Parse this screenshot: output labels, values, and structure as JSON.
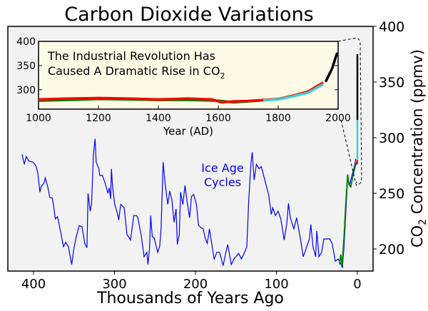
{
  "chart_data": [
    {
      "type": "line",
      "title": "Carbon Dioxide Variations",
      "xlabel": "Thousands of Years Ago",
      "ylabel": "CO2 Concentration (ppmv)",
      "ylabel_main": "CO",
      "ylabel_sub": "2",
      "ylabel_rest": " Concentration (ppmv)",
      "xlim": [
        430,
        -19
      ],
      "ylim": [
        180,
        400
      ],
      "x_reversed": true,
      "xticks": [
        400,
        300,
        200,
        100,
        0
      ],
      "yticks": [
        200,
        250,
        300,
        350,
        400
      ],
      "y_axis_side": "right",
      "grid": false,
      "background": "#f2f2f2",
      "annotation": {
        "line1": "Ice Age",
        "line2": "Cycles",
        "color": "#0000ff"
      },
      "series": [
        {
          "color": "#0000ff",
          "x": [
            414.1,
            411.4,
            409.1,
            405.7,
            400.7,
            397.3,
            394.6,
            392.2,
            390.6,
            387.2,
            385.5,
            382.2,
            379.8,
            377.1,
            375.4,
            373.1,
            370.4,
            367.0,
            363.0,
            360.3,
            356.9,
            352.9,
            350.2,
            347.5,
            343.5,
            340.1,
            336.7,
            334.0,
            332.7,
            330.0,
            328.3,
            326.0,
            324.0,
            322.6,
            319.2,
            318.2,
            314.9,
            311.5,
            308.1,
            306.5,
            304.8,
            303.8,
            302.4,
            299.7,
            296.4,
            294.7,
            292.3,
            288.0,
            284.6,
            280.2,
            276.2,
            272.8,
            271.1,
            266.8,
            263.4,
            260.0,
            258.7,
            256.7,
            255.3,
            253.3,
            251.0,
            246.6,
            244.2,
            242.5,
            239.9,
            237.5,
            234.2,
            231.8,
            229.1,
            226.4,
            224.0,
            222.4,
            220.0,
            218.3,
            215.6,
            212.9,
            210.6,
            207.2,
            204.9,
            202.2,
            198.8,
            196.2,
            192.8,
            190.4,
            188.0,
            185.4,
            182.7,
            179.3,
            176.9,
            173.6,
            170.2,
            165.8,
            162.5,
            160.1,
            155.8,
            152.4,
            146.7,
            143.3,
            139.9,
            136.6,
            134.2,
            131.5,
            129.9,
            127.5,
            124.8,
            121.4,
            118.7,
            114.7,
            109.7,
            106.3,
            104.6,
            101.3,
            97.9,
            94.5,
            90.5,
            87.1,
            85.1,
            82.8,
            78.4,
            75.0,
            71.0,
            66.9,
            59.2,
            57.5,
            54.8,
            51.5,
            50.1,
            47.4,
            44.1,
            41.4,
            34.0,
            31.3,
            27.2,
            23.9,
            21.2,
            18.5,
            16.5,
            14.5,
            12.1,
            9.8,
            7.1,
            3.7,
            2.0
          ],
          "y": [
            285,
            276,
            283,
            279,
            278,
            275,
            268,
            251,
            256,
            259,
            264,
            255,
            246,
            246,
            240,
            227,
            229,
            217,
            202,
            206,
            202,
            186,
            200,
            210,
            221,
            220,
            205,
            201,
            250,
            234,
            241,
            285,
            299,
            278,
            272,
            266,
            266,
            259,
            250,
            255,
            245,
            272,
            256,
            240,
            232,
            226,
            240,
            237,
            213,
            208,
            230,
            230,
            228,
            211,
            193,
            197,
            186,
            200,
            230,
            211,
            210,
            197,
            202,
            218,
            278,
            259,
            240,
            252,
            244,
            224,
            236,
            204,
            213,
            251,
            240,
            257,
            244,
            228,
            247,
            249,
            240,
            221,
            219,
            218,
            210,
            205,
            218,
            202,
            191,
            197,
            197,
            185,
            197,
            204,
            186,
            191,
            196,
            191,
            196,
            202,
            244,
            276,
            287,
            262,
            276,
            272,
            274,
            263,
            249,
            231,
            237,
            230,
            234,
            227,
            208,
            223,
            241,
            228,
            218,
            228,
            212,
            193,
            209,
            222,
            202,
            193,
            216,
            193,
            197,
            209,
            209,
            205,
            189,
            191,
            188,
            183,
            202,
            229,
            263,
            257,
            265,
            274,
            281
          ]
        },
        {
          "color": "#008000",
          "x": [
            22,
            20.5,
            18.8,
            16.5,
            14.5,
            12.1,
            10.4,
            8,
            5.4,
            2.7,
            1
          ],
          "y": [
            186,
            195,
            185,
            211,
            238,
            267,
            258,
            256,
            266,
            274,
            278
          ]
        },
        {
          "color": "#ff0000",
          "x": [
            0.5,
            0.2
          ],
          "y": [
            276,
            280
          ]
        },
        {
          "color": "#40d0d0",
          "x": [
            0,
            0
          ],
          "y": [
            280,
            316
          ]
        },
        {
          "color": "#000000",
          "x": [
            0,
            0
          ],
          "y": [
            316,
            375
          ]
        }
      ]
    },
    {
      "type": "line",
      "xlabel": "Year (AD)",
      "xlim": [
        1000,
        2000
      ],
      "ylim": [
        260,
        400
      ],
      "xticks": [
        1000,
        1200,
        1400,
        1600,
        1800,
        2000
      ],
      "yticks": [
        300,
        350,
        400
      ],
      "background": "#fdfbe6",
      "annotation": {
        "line1": "The Industrial Revolution Has",
        "line2": "Caused A Dramatic Rise in CO",
        "sub": "2"
      },
      "series": [
        {
          "color": "#008000",
          "x": [
            1000,
            1100,
            1200,
            1300,
            1400,
            1500,
            1600,
            1650,
            1700,
            1800
          ],
          "y": [
            277.5,
            279,
            281,
            280,
            279,
            279,
            277.5,
            274,
            276,
            280.5
          ]
        },
        {
          "color": "#ff0000",
          "x": [
            1000,
            1100,
            1200,
            1300,
            1400,
            1450,
            1500,
            1580,
            1610,
            1650,
            1700,
            1750,
            1800,
            1850,
            1900,
            1950
          ],
          "y": [
            280,
            282,
            283,
            282,
            280,
            281,
            282,
            280,
            274,
            276,
            277,
            279,
            281,
            288,
            296.5,
            315
          ]
        },
        {
          "color": "#40d0d0",
          "x": [
            1750,
            1800,
            1850,
            1900,
            1950
          ],
          "y": [
            278,
            280,
            286.5,
            294,
            311.5
          ]
        },
        {
          "color": "#000000",
          "x": [
            1958,
            1980,
            1997
          ],
          "y": [
            316.5,
            344,
            376.5
          ]
        }
      ]
    }
  ]
}
